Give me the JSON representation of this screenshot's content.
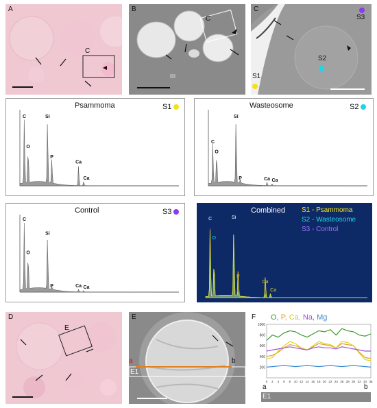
{
  "panels": {
    "A": {
      "label": "A",
      "inset_label": "C"
    },
    "B": {
      "label": "B",
      "inset_label": "C"
    },
    "C": {
      "label": "C",
      "s1": "S1",
      "s2": "S2",
      "s3": "S3"
    },
    "D": {
      "label": "D",
      "inset_label": "E"
    },
    "E": {
      "label": "E",
      "a": "a",
      "b": "b",
      "e1": "E1"
    },
    "F": {
      "label": "F",
      "a": "a",
      "b": "b",
      "e1": "E1"
    }
  },
  "colors": {
    "s1": "#f2e21a",
    "s2": "#1ed6e6",
    "s3": "#8a3cf0",
    "O": "#3a9a2a",
    "P": "#e0a020",
    "Ca": "#e0d020",
    "Na": "#a050e0",
    "Mg": "#3a8ad0"
  },
  "line_scan_legend": {
    "O": "O,",
    "P": "P,",
    "Ca": "Ca,",
    "Na": "Na,",
    "Mg": "Mg"
  },
  "chart_data": [
    {
      "type": "bar",
      "title": "Psammoma",
      "sample": "S1",
      "peaks": [
        {
          "label": "C",
          "x": 0.28,
          "y": 13
        },
        {
          "label": "O",
          "x": 0.52,
          "y": 7
        },
        {
          "label": "Si",
          "x": 1.74,
          "y": 13
        },
        {
          "label": "P",
          "x": 2.01,
          "y": 5
        },
        {
          "label": "Ca",
          "x": 3.69,
          "y": 4
        },
        {
          "label": "Ca",
          "x": 4.01,
          "y": 0.8
        }
      ],
      "xlim": [
        0,
        10
      ],
      "ylim": [
        0,
        15
      ]
    },
    {
      "type": "bar",
      "title": "Wasteosome",
      "sample": "S2",
      "peaks": [
        {
          "label": "C",
          "x": 0.28,
          "y": 8
        },
        {
          "label": "O",
          "x": 0.52,
          "y": 6
        },
        {
          "label": "Si",
          "x": 1.74,
          "y": 13
        },
        {
          "label": "P",
          "x": 2.01,
          "y": 0.8
        },
        {
          "label": "Ca",
          "x": 3.69,
          "y": 0.7
        },
        {
          "label": "Ca",
          "x": 4.01,
          "y": 0.4
        }
      ],
      "xlim": [
        0,
        10
      ],
      "ylim": [
        0,
        15
      ]
    },
    {
      "type": "bar",
      "title": "Control",
      "sample": "S3",
      "peaks": [
        {
          "label": "C",
          "x": 0.28,
          "y": 25
        },
        {
          "label": "O",
          "x": 0.52,
          "y": 13
        },
        {
          "label": "Si",
          "x": 1.74,
          "y": 20
        },
        {
          "label": "P",
          "x": 2.01,
          "y": 1
        },
        {
          "label": "Ca",
          "x": 3.69,
          "y": 1
        },
        {
          "label": "Ca",
          "x": 4.01,
          "y": 0.5
        }
      ],
      "xlim": [
        0,
        10
      ],
      "ylim": [
        0,
        28
      ]
    },
    {
      "type": "line",
      "title": "Combined",
      "legend": [
        "S1 - Psammoma",
        "S2 - Wasteosome",
        "S3 - Control"
      ],
      "peak_labels": [
        "C",
        "O",
        "Si",
        "P",
        "Ca",
        "Ca"
      ]
    },
    {
      "type": "line",
      "x_ticks": [
        "0",
        "2",
        "4",
        "6",
        "8",
        "10",
        "12",
        "14",
        "16",
        "18",
        "20",
        "22",
        "24",
        "26",
        "28",
        "30",
        "32",
        "34",
        "36"
      ],
      "y_ticks": [
        "1000",
        "800",
        "600",
        "400",
        "200"
      ],
      "series": [
        {
          "name": "O",
          "values": [
            700,
            800,
            760,
            840,
            880,
            860,
            800,
            760,
            820,
            880,
            860,
            900,
            800,
            920,
            880,
            860,
            800,
            780,
            820
          ]
        },
        {
          "name": "P",
          "values": [
            400,
            420,
            480,
            560,
            620,
            600,
            560,
            520,
            580,
            640,
            620,
            600,
            560,
            640,
            620,
            600,
            480,
            380,
            360
          ]
        },
        {
          "name": "Ca",
          "values": [
            350,
            380,
            500,
            600,
            680,
            640,
            560,
            520,
            600,
            680,
            640,
            620,
            560,
            680,
            660,
            600,
            460,
            340,
            320
          ]
        },
        {
          "name": "Na",
          "values": [
            500,
            520,
            540,
            560,
            580,
            560,
            540,
            520,
            560,
            580,
            560,
            560,
            540,
            580,
            560,
            540,
            520,
            500,
            500
          ]
        },
        {
          "name": "Mg",
          "values": [
            200,
            210,
            220,
            230,
            220,
            210,
            220,
            230,
            220,
            210,
            220,
            230,
            220,
            210,
            220,
            230,
            220,
            210,
            200
          ]
        }
      ],
      "ylim": [
        0,
        1000
      ],
      "xlim": [
        0,
        36
      ]
    }
  ]
}
